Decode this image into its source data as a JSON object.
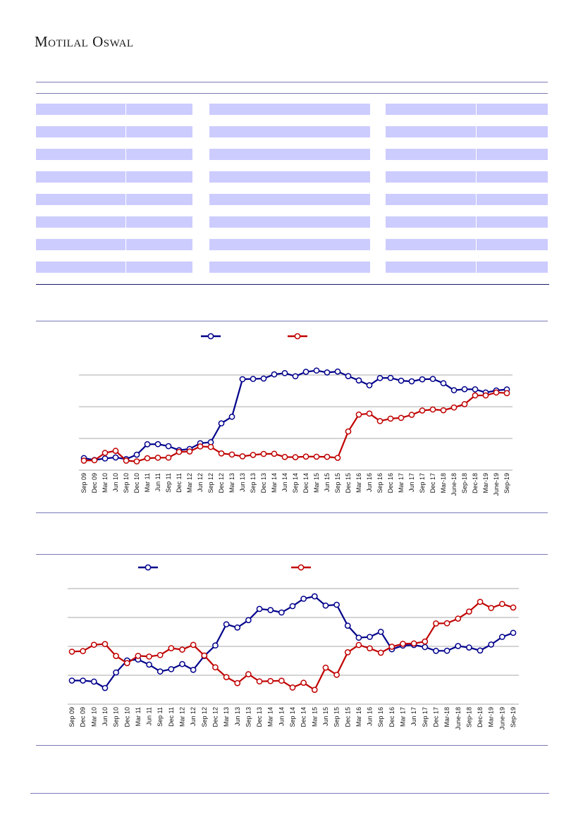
{
  "header": {
    "brand": "Motilal Oswal"
  },
  "table": {
    "rows": 8,
    "column_groups": 3
  },
  "colors": {
    "blue": "#00008b",
    "red": "#c00000",
    "row_fill": "#ccccff",
    "rule": "#7a7ab8"
  },
  "chart_data": [
    {
      "type": "line",
      "title": "",
      "categories": [
        "Sep 09",
        "Dec 09",
        "Mar 10",
        "Jun 10",
        "Sep 10",
        "Dec 10",
        "Mar 11",
        "Jun 11",
        "Sep 11",
        "Dec 11",
        "Mar 12",
        "Jun 12",
        "Sep 12",
        "Dec 12",
        "Mar 13",
        "Jun 13",
        "Sep 13",
        "Dec 13",
        "Mar 14",
        "Jun 14",
        "Sep 14",
        "Dec 14",
        "Mar 15",
        "Jun 15",
        "Sep 15",
        "Dec 15",
        "Mar 16",
        "Jun 16",
        "Sep 16",
        "Dec 16",
        "Mar 17",
        "Jun 17",
        "Sep 17",
        "Dec 17",
        "Mar-18",
        "June-18",
        "Sep-18",
        "Dec-18",
        "Mar-19",
        "June-19",
        "Sep-19"
      ],
      "ylim": [
        0,
        100
      ],
      "grid": true,
      "legend": "top-center",
      "series": [
        {
          "name": "",
          "color": "#00008b",
          "values": [
            9.5,
            8.0,
            9.2,
            10.0,
            8.7,
            12.2,
            20.4,
            20.5,
            18.9,
            15.7,
            16.7,
            21.2,
            22.0,
            36.9,
            42.1,
            71.7,
            71.9,
            72.2,
            75.5,
            76.5,
            74.0,
            77.5,
            78.5,
            77.0,
            77.7,
            74.1,
            70.7,
            66.9,
            72.6,
            72.7,
            70.5,
            70.0,
            71.6,
            71.9,
            68.5,
            63.0,
            63.8,
            63.7,
            61.2,
            62.8,
            63.6
          ]
        },
        {
          "name": "",
          "color": "#c00000",
          "values": [
            7.5,
            7.8,
            13.6,
            15.2,
            7.5,
            6.9,
            9.4,
            9.8,
            9.9,
            14.4,
            14.7,
            18.7,
            18.3,
            13.2,
            12.3,
            10.9,
            12.0,
            12.8,
            12.9,
            10.4,
            10.2,
            10.7,
            10.6,
            10.5,
            9.7,
            30.5,
            43.8,
            44.6,
            38.7,
            40.6,
            41.2,
            43.6,
            47.0,
            47.8,
            47.2,
            49.4,
            52.0,
            58.9,
            58.9,
            61.2,
            60.7
          ]
        }
      ]
    },
    {
      "type": "line",
      "title": "",
      "categories": [
        "Sep 09",
        "Dec 09",
        "Mar 10",
        "Jun 10",
        "Sep 10",
        "Dec 10",
        "Mar 11",
        "Jun 11",
        "Sep 11",
        "Dec 11",
        "Mar 12",
        "Jun 12",
        "Sep 12",
        "Dec 12",
        "Mar 13",
        "Jun 13",
        "Sep 13",
        "Dec 13",
        "Mar 14",
        "Jun 14",
        "Sep 14",
        "Dec 14",
        "Mar 15",
        "Jun 15",
        "Sep 15",
        "Dec 15",
        "Mar 16",
        "Jun 16",
        "Sep 16",
        "Dec 16",
        "Mar 17",
        "Jun 17",
        "Sep 17",
        "Dec 17",
        "Mar-18",
        "June-18",
        "Sep-18",
        "Dec-18",
        "Mar-19",
        "June-19",
        "Sep-19"
      ],
      "ylim": [
        0,
        100
      ],
      "grid": true,
      "legend": "top-center",
      "series": [
        {
          "name": "",
          "color": "#00008b",
          "values": [
            20.4,
            20.4,
            19.5,
            14.0,
            27.4,
            37.8,
            38.6,
            34.2,
            28.3,
            30.3,
            34.7,
            29.7,
            41.7,
            50.8,
            69.1,
            66.3,
            72.7,
            82.4,
            81.4,
            79.3,
            84.8,
            91.2,
            93.3,
            85.3,
            86.0,
            67.9,
            57.5,
            58.2,
            62.6,
            47.5,
            50.7,
            51.2,
            49.4,
            46.1,
            46.2,
            50.3,
            49.0,
            46.4,
            51.6,
            58.2,
            61.7
          ]
        },
        {
          "name": "",
          "color": "#c00000",
          "values": [
            45.4,
            45.9,
            51.4,
            52.0,
            41.7,
            35.5,
            41.8,
            41.2,
            42.5,
            48.4,
            47.2,
            51.3,
            42.1,
            31.9,
            23.4,
            18.2,
            25.9,
            19.7,
            20.0,
            20.3,
            14.4,
            18.5,
            12.4,
            31.6,
            25.4,
            44.9,
            51.2,
            48.3,
            44.5,
            49.7,
            52.2,
            52.5,
            54.2,
            69.8,
            70.0,
            74.0,
            80.1,
            88.5,
            83.2,
            86.7,
            83.6
          ]
        }
      ]
    }
  ]
}
